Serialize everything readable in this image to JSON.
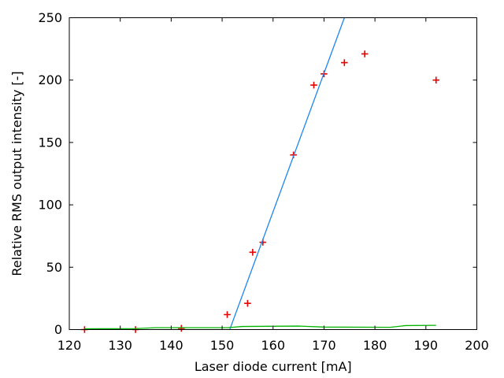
{
  "figure": {
    "background": "#ffffff",
    "border_color": "#000000",
    "text_color": "#000000"
  },
  "chart_data": {
    "type": "scatter",
    "title": "",
    "xlabel": "Laser diode current [mA]",
    "ylabel": "Relative RMS output intensity [-]",
    "xlim": [
      120,
      200
    ],
    "ylim": [
      0,
      250
    ],
    "xticks": [
      120,
      130,
      140,
      150,
      160,
      170,
      180,
      190,
      200
    ],
    "yticks": [
      0,
      50,
      100,
      150,
      200,
      250
    ],
    "grid": false,
    "legend": "none",
    "tick_style": "inward-mirrored-all-borders",
    "series": [
      {
        "name": "measured-points",
        "type": "scatter",
        "marker": "plus",
        "color": "#e60000",
        "points": [
          [
            123,
            0
          ],
          [
            133,
            0
          ],
          [
            142,
            1
          ],
          [
            151,
            12
          ],
          [
            155,
            21
          ],
          [
            156,
            62
          ],
          [
            158,
            70
          ],
          [
            164,
            140
          ],
          [
            168,
            196
          ],
          [
            170,
            205
          ],
          [
            174,
            214
          ],
          [
            178,
            221
          ],
          [
            192,
            200
          ]
        ]
      },
      {
        "name": "linear-fit-line",
        "type": "line",
        "color": "#1c86ee",
        "points": [
          [
            151.5,
            0
          ],
          [
            174,
            250
          ]
        ]
      },
      {
        "name": "baseline-curve",
        "type": "line",
        "color": "#00b400",
        "points": [
          [
            123,
            0.6
          ],
          [
            133,
            0.8
          ],
          [
            137,
            1.5
          ],
          [
            151,
            1.5
          ],
          [
            154,
            2.5
          ],
          [
            165,
            2.8
          ],
          [
            170,
            2.0
          ],
          [
            183,
            1.8
          ],
          [
            186,
            3.2
          ],
          [
            192,
            3.4
          ]
        ]
      }
    ]
  }
}
